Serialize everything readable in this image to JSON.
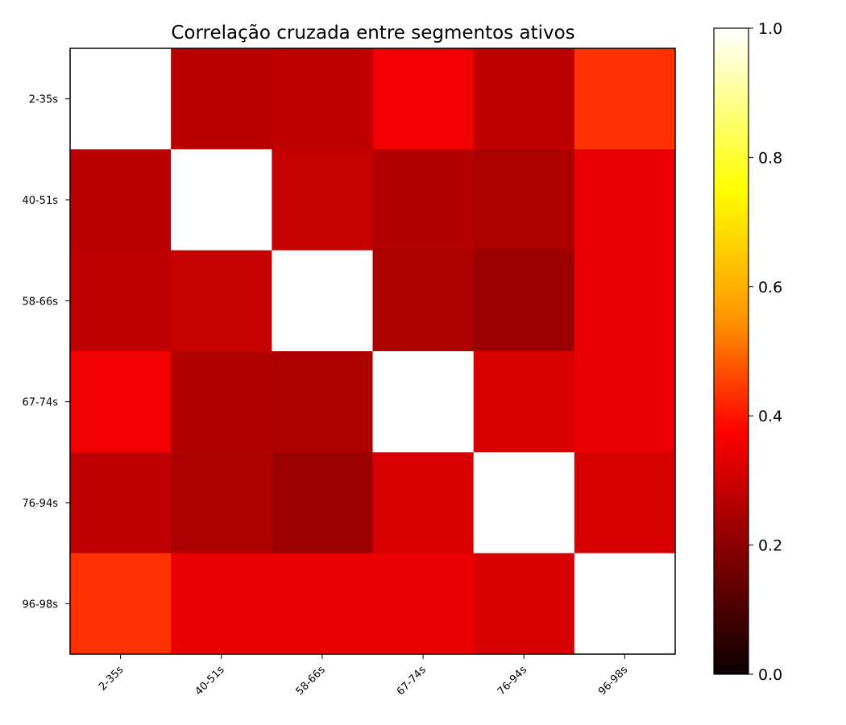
{
  "chart_data": {
    "type": "heatmap",
    "title": "Correlação cruzada entre segmentos ativos",
    "xlabel": "",
    "ylabel": "",
    "row_labels": [
      "2-35s",
      "40-51s",
      "58-66s",
      "67-74s",
      "76-94s",
      "96-98s"
    ],
    "col_labels": [
      "2-35s",
      "40-51s",
      "58-66s",
      "67-74s",
      "76-94s",
      "96-98s"
    ],
    "values": [
      [
        1.0,
        0.26,
        0.27,
        0.35,
        0.27,
        0.45
      ],
      [
        0.26,
        1.0,
        0.28,
        0.25,
        0.24,
        0.34
      ],
      [
        0.27,
        0.28,
        1.0,
        0.24,
        0.21,
        0.34
      ],
      [
        0.35,
        0.25,
        0.24,
        1.0,
        0.31,
        0.34
      ],
      [
        0.27,
        0.24,
        0.21,
        0.31,
        1.0,
        0.31
      ],
      [
        0.45,
        0.34,
        0.34,
        0.34,
        0.31,
        1.0
      ]
    ],
    "colormap": "hot",
    "vmin": 0.0,
    "vmax": 1.0,
    "colorbar": {
      "ticks": [
        "0.0",
        "0.2",
        "0.4",
        "0.6",
        "0.8",
        "1.0"
      ]
    }
  }
}
